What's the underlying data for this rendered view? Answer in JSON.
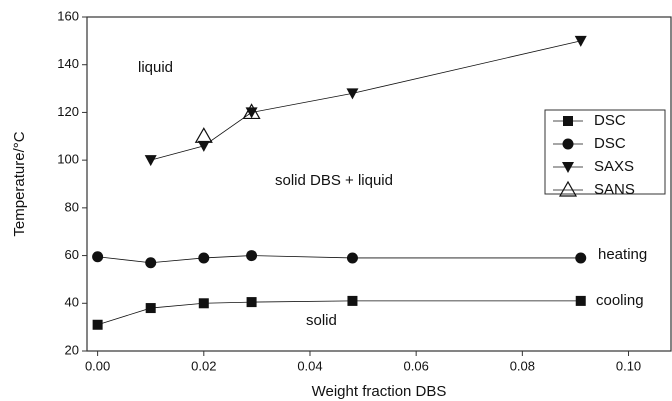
{
  "chart_data": {
    "type": "scatter",
    "x_label": "Weight fraction DBS",
    "y_label": "Temperature/°C",
    "xlim": [
      -0.002,
      0.108
    ],
    "ylim": [
      20,
      160
    ],
    "xticks": [
      {
        "value": 0,
        "label": "0.00"
      },
      {
        "value": 0.02,
        "label": "0.02"
      },
      {
        "value": 0.04,
        "label": "0.04"
      },
      {
        "value": 0.06,
        "label": "0.06"
      },
      {
        "value": 0.08,
        "label": "0.08"
      },
      {
        "value": 0.1,
        "label": "0.10"
      }
    ],
    "yticks": [
      20,
      40,
      60,
      80,
      100,
      120,
      140,
      160
    ],
    "annotations": [
      "liquid",
      "solid DBS + liquid",
      "heating",
      "cooling",
      "solid"
    ],
    "series": [
      {
        "name": "DSC",
        "color": "#111111",
        "marker": "square",
        "line": true,
        "x": [
          0,
          0.01,
          0.02,
          0.029,
          0.048,
          0.091
        ],
        "values": [
          31,
          38,
          40,
          40.5,
          41,
          41
        ]
      },
      {
        "name": "DSC",
        "color": "#111111",
        "marker": "circle",
        "line": true,
        "x": [
          0,
          0.01,
          0.02,
          0.029,
          0.048,
          0.091
        ],
        "values": [
          59.5,
          57,
          59,
          60,
          59,
          59
        ]
      },
      {
        "name": "SAXS",
        "color": "#111111",
        "marker": "triangle-down",
        "line": true,
        "x": [
          0.01,
          0.02,
          0.029,
          0.048,
          0.091
        ],
        "values": [
          100,
          106,
          120,
          128,
          150
        ]
      },
      {
        "name": "SANS",
        "color": "#111111",
        "marker": "triangle-up-open",
        "line": false,
        "x": [
          0.02,
          0.029
        ],
        "values": [
          110,
          120
        ]
      }
    ]
  }
}
